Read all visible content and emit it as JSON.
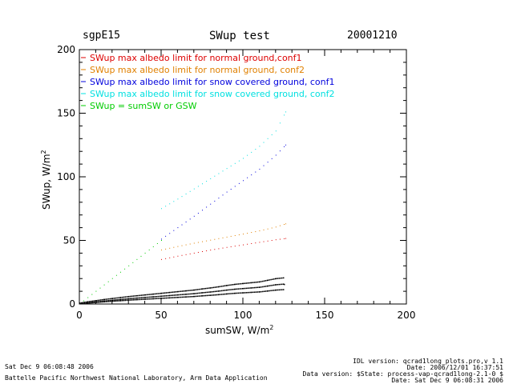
{
  "header": {
    "site": "sgpE15",
    "title": "SWup test",
    "date": "20001210"
  },
  "footer": {
    "left_line1": "Sat Dec  9 06:08:48 2006",
    "left_line2": "Battelle Pacific Northwest National Laboratory, Arm Data Application",
    "right_line1": "IDL version: qcrad1long_plots.pro,v 1.1",
    "right_line2": "Date: 2006/12/01 16:37:51",
    "right_line3": "Data version: $State: process-vap-qcrad1long-2.1-0 $",
    "right_line4": "Date: Sat Dec  9 06:08:31 2006"
  },
  "colors": {
    "red": "#dd0000",
    "orange": "#e08000",
    "blue": "#0000dd",
    "cyan": "#00e0e0",
    "green": "#00cc00",
    "black": "#000000"
  },
  "chart_data": {
    "type": "scatter",
    "xlabel": "sumSW, W/m",
    "xlabel_sup": "2",
    "ylabel": "SWup, W/m",
    "ylabel_sup": "2",
    "xlim": [
      0,
      200
    ],
    "ylim": [
      0,
      200
    ],
    "x_ticks": [
      "0",
      "50",
      "100",
      "150",
      "200"
    ],
    "y_ticks": [
      "0",
      "50",
      "100",
      "150",
      "200"
    ],
    "grid": false,
    "legend_position": "top-left",
    "series": [
      {
        "name": "SWup max albedo limit for normal ground,conf1",
        "color": "red",
        "points": [
          [
            50,
            35
          ],
          [
            60,
            37.6
          ],
          [
            70,
            40
          ],
          [
            80,
            42.4
          ],
          [
            90,
            44.5
          ],
          [
            100,
            46.5
          ],
          [
            110,
            48.5
          ],
          [
            120,
            50.5
          ],
          [
            126,
            51.5
          ]
        ]
      },
      {
        "name": "SWup max albedo limit for normal ground, conf2",
        "color": "orange",
        "points": [
          [
            50,
            42.5
          ],
          [
            60,
            45.2
          ],
          [
            70,
            47.8
          ],
          [
            80,
            50.2
          ],
          [
            90,
            52.6
          ],
          [
            100,
            55
          ],
          [
            110,
            57.5
          ],
          [
            120,
            60.5
          ],
          [
            126,
            63
          ]
        ]
      },
      {
        "name": "SWup max albedo limit for snow covered ground, conf1",
        "color": "blue",
        "points": [
          [
            50,
            51
          ],
          [
            60,
            60
          ],
          [
            70,
            69
          ],
          [
            80,
            78.5
          ],
          [
            90,
            88
          ],
          [
            100,
            97
          ],
          [
            110,
            106
          ],
          [
            120,
            117
          ],
          [
            126,
            125
          ]
        ]
      },
      {
        "name": "SWup max albedo limit for snow covered ground, conf2",
        "color": "cyan",
        "points": [
          [
            50,
            75
          ],
          [
            60,
            82.5
          ],
          [
            70,
            90.5
          ],
          [
            80,
            98.5
          ],
          [
            90,
            106.5
          ],
          [
            100,
            114.5
          ],
          [
            110,
            124
          ],
          [
            120,
            136
          ],
          [
            126,
            151
          ]
        ]
      },
      {
        "name": "SWup = sumSW or GSW",
        "color": "green",
        "points": [
          [
            0,
            0
          ],
          [
            10,
            10
          ],
          [
            20,
            20
          ],
          [
            30,
            30
          ],
          [
            40,
            40
          ],
          [
            50,
            50
          ]
        ]
      },
      {
        "name": "",
        "color": "black",
        "points": [
          [
            0,
            0
          ],
          [
            5,
            0.8
          ],
          [
            10,
            1.5
          ],
          [
            15,
            2.2
          ],
          [
            20,
            2.8
          ],
          [
            25,
            3.4
          ],
          [
            30,
            4
          ],
          [
            35,
            4.5
          ],
          [
            40,
            5
          ],
          [
            45,
            5.5
          ],
          [
            50,
            6
          ],
          [
            55,
            6.5
          ],
          [
            60,
            7
          ],
          [
            65,
            7.5
          ],
          [
            70,
            8
          ],
          [
            75,
            8.7
          ],
          [
            80,
            9.3
          ],
          [
            85,
            10
          ],
          [
            90,
            10.8
          ],
          [
            95,
            11.5
          ],
          [
            100,
            12
          ],
          [
            105,
            12.5
          ],
          [
            110,
            13
          ],
          [
            115,
            14
          ],
          [
            120,
            15
          ],
          [
            125,
            15.5
          ]
        ]
      }
    ]
  }
}
